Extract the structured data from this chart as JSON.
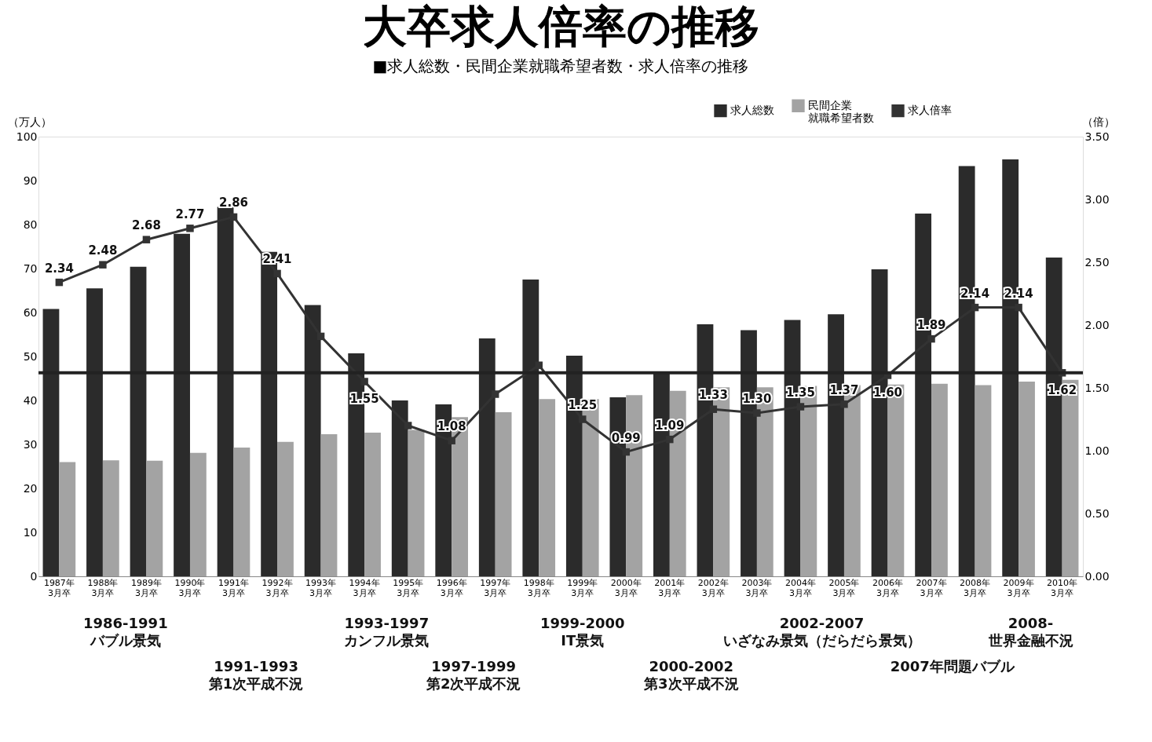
{
  "chart_data": {
    "type": "bar",
    "title": "大卒求人倍率の推移",
    "subtitle": "■求人総数・民間企業就職希望者数・求人倍率の推移",
    "ylabel": "（万人）",
    "y2label": "（倍）",
    "categories": [
      "1987年\n3月卒",
      "1988年\n3月卒",
      "1989年\n3月卒",
      "1990年\n3月卒",
      "1991年\n3月卒",
      "1992年\n3月卒",
      "1993年\n3月卒",
      "1994年\n3月卒",
      "1995年\n3月卒",
      "1996年\n3月卒",
      "1997年\n3月卒",
      "1998年\n3月卒",
      "1999年\n3月卒",
      "2000年\n3月卒",
      "2001年\n3月卒",
      "2002年\n3月卒",
      "2003年\n3月卒",
      "2004年\n3月卒",
      "2005年\n3月卒",
      "2006年\n3月卒",
      "2007年\n3月卒",
      "2008年\n3月卒",
      "2009年\n3月卒",
      "2010年\n3月卒"
    ],
    "series": [
      {
        "name": "求人総数",
        "type": "bar",
        "color": "#2b2b2b",
        "values": [
          60.8,
          65.5,
          70.4,
          77.9,
          84.0,
          73.8,
          61.7,
          50.7,
          40.0,
          39.1,
          54.1,
          67.5,
          50.2,
          40.7,
          46.2,
          57.3,
          56.0,
          58.3,
          59.6,
          69.8,
          82.5,
          93.3,
          94.8,
          72.5
        ]
      },
      {
        "name": "民間企業就職希望者数",
        "type": "bar",
        "color": "#a3a3a3",
        "values": [
          26.0,
          26.4,
          26.3,
          28.1,
          29.3,
          30.6,
          32.3,
          32.7,
          33.3,
          36.2,
          37.3,
          40.3,
          40.3,
          41.2,
          42.2,
          43.0,
          43.0,
          43.3,
          43.5,
          43.6,
          43.8,
          43.5,
          44.3,
          44.7
        ]
      },
      {
        "name": "求人倍率",
        "type": "line",
        "axis": "y2",
        "color": "#333333",
        "marker": "square",
        "line_style": "solid",
        "values": [
          2.34,
          2.48,
          2.68,
          2.77,
          2.86,
          2.41,
          1.91,
          1.55,
          1.2,
          1.08,
          1.45,
          1.68,
          1.25,
          0.99,
          1.09,
          1.33,
          1.3,
          1.35,
          1.37,
          1.6,
          1.89,
          2.14,
          2.14,
          1.62
        ],
        "value_labels": [
          "2.34",
          "2.48",
          "2.68",
          "2.77",
          "2.86",
          "2.41",
          null,
          "1.55",
          null,
          "1.08",
          null,
          null,
          "1.25",
          "0.99",
          "1.09",
          "1.33",
          "1.30",
          "1.35",
          "1.37",
          "1.60",
          "1.89",
          "2.14",
          "2.14",
          "1.62"
        ]
      }
    ],
    "ylim": [
      0,
      100
    ],
    "yticks": [
      0,
      10,
      20,
      30,
      40,
      50,
      60,
      70,
      80,
      90,
      100
    ],
    "y2lim": [
      0,
      3.5
    ],
    "y2ticks": [
      {
        "value": 0,
        "label": "0.00"
      },
      {
        "value": 0.5,
        "label": "0.50"
      },
      {
        "value": 1,
        "label": "1.00"
      },
      {
        "value": 1.5,
        "label": "1.50"
      },
      {
        "value": 2,
        "label": "2.00"
      },
      {
        "value": 2.5,
        "label": "2.50"
      },
      {
        "value": 3,
        "label": "3.00"
      },
      {
        "value": 3.5,
        "label": "3.50"
      }
    ],
    "ref_lines": [
      {
        "axis": "y2",
        "value": 1.62,
        "color": "#222222"
      }
    ],
    "annotations": [
      "1986-1991 バブル景気",
      "1991-1993 第1次平成不況",
      "1993-1997 カンフル景気",
      "1997-1999 第2次平成不況",
      "1999-2000 IT景気",
      "2000-2002 第3次平成不況",
      "2002-2007 いざなみ景気（だらだら景気）",
      "2007年問題バブル",
      "2008- 世界金融不況"
    ],
    "legend": "top right",
    "grid": false
  }
}
